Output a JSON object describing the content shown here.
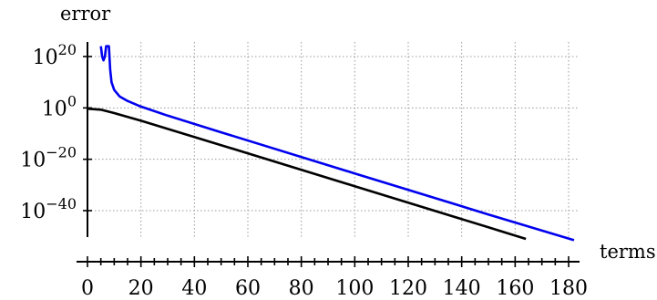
{
  "chart_data": {
    "type": "line",
    "title": "",
    "xlabel": "terms",
    "ylabel": "error",
    "y_scale": "log",
    "xlim": [
      0,
      182
    ],
    "ylim_exp": [
      -52,
      24
    ],
    "x_ticks": [
      0,
      20,
      40,
      60,
      80,
      100,
      120,
      140,
      160,
      180
    ],
    "x_tick_labels": [
      "0",
      "20",
      "40",
      "60",
      "80",
      "100",
      "120",
      "140",
      "160",
      "180"
    ],
    "y_tick_exponents": [
      20,
      0,
      -20,
      -40
    ],
    "y_tick_labels": [
      {
        "base": "10",
        "exp": "20"
      },
      {
        "base": "10",
        "exp": "0"
      },
      {
        "base": "10",
        "exp": "−20"
      },
      {
        "base": "10",
        "exp": "−40"
      }
    ],
    "grid": true,
    "series": [
      {
        "color": "#0000ee",
        "points_log10": [
          [
            5,
            24
          ],
          [
            5.5,
            20
          ],
          [
            6,
            18.5
          ],
          [
            6.5,
            20
          ],
          [
            7,
            24
          ],
          [
            8,
            24
          ],
          [
            8.5,
            15
          ],
          [
            9,
            10
          ],
          [
            10,
            7
          ],
          [
            12,
            4.5
          ],
          [
            15,
            2.7
          ],
          [
            20,
            0.5
          ],
          [
            30,
            -3
          ],
          [
            50,
            -9.5
          ],
          [
            100,
            -25.5
          ],
          [
            150,
            -41.5
          ],
          [
            182,
            -51.5
          ]
        ]
      },
      {
        "color": "#000000",
        "points_log10": [
          [
            0,
            -0.3
          ],
          [
            5,
            -0.7
          ],
          [
            10,
            -2
          ],
          [
            20,
            -5
          ],
          [
            50,
            -14.5
          ],
          [
            100,
            -30.5
          ],
          [
            150,
            -46.5
          ],
          [
            164,
            -51
          ]
        ]
      }
    ]
  }
}
